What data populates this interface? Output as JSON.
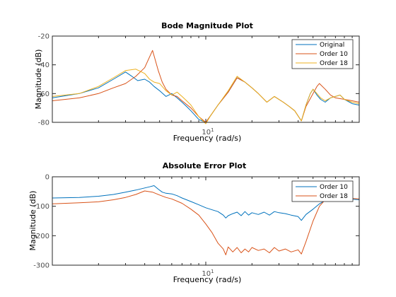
{
  "colors": {
    "blue": "#0072bd",
    "red": "#d95319",
    "yellow": "#edb120",
    "axis": "#262626"
  },
  "chart_data": [
    {
      "type": "line",
      "title": "Bode Magnitude Plot",
      "xlabel": "Frequency  (rad/s)",
      "ylabel": "Magnitude (dB)",
      "xscale": "log",
      "xlim": [
        1.0,
        100.0
      ],
      "ylim": [
        -80,
        -20
      ],
      "yticks": [
        -80,
        -60,
        -40,
        -20
      ],
      "xticks": [
        {
          "value": 10,
          "base": "10",
          "exp": "1"
        }
      ],
      "legend_position": "top-right",
      "series": [
        {
          "name": "Original",
          "color": "#0072bd",
          "x": [
            1.0,
            1.5,
            2.0,
            2.5,
            3.0,
            3.3,
            3.6,
            4.0,
            4.3,
            4.6,
            5.0,
            5.5,
            6.0,
            6.5,
            7.0,
            7.5,
            8.0,
            9.0,
            10.0,
            10.8,
            12.0,
            14.0,
            16.0,
            18.0,
            20.0,
            22.0,
            25.0,
            28.0,
            32.0,
            35.0,
            38.0,
            42.0,
            45.0,
            48.0,
            50.0,
            53.0,
            56.0,
            60.0,
            65.0,
            70.0,
            75.0,
            80.0,
            90.0,
            100.0
          ],
          "y": [
            -63,
            -60,
            -56,
            -50,
            -45,
            -48,
            -51,
            -50,
            -52,
            -55,
            -58,
            -62,
            -60,
            -63,
            -66,
            -69,
            -72,
            -78,
            -80,
            -75,
            -68,
            -59,
            -49,
            -52,
            -56,
            -60,
            -66,
            -62,
            -66,
            -69,
            -72,
            -79,
            -68,
            -60,
            -57,
            -61,
            -64,
            -66,
            -63,
            -62,
            -61,
            -64,
            -67,
            -68
          ]
        },
        {
          "name": "Order 10",
          "color": "#d95319",
          "x": [
            1.0,
            1.5,
            2.0,
            2.5,
            3.0,
            3.5,
            4.0,
            4.5,
            4.9,
            5.2,
            5.5,
            6.0,
            6.5,
            7.0,
            8.0,
            9.0,
            10.0,
            10.8,
            12.0,
            14.0,
            16.0,
            18.0,
            20.0,
            22.0,
            25.0,
            28.0,
            32.0,
            35.0,
            38.0,
            42.0,
            45.0,
            50.0,
            53.0,
            55.0,
            60.0,
            65.0,
            70.0,
            80.0,
            90.0,
            100.0
          ],
          "y": [
            -65,
            -63,
            -60,
            -56,
            -53,
            -48,
            -42,
            -30,
            -44,
            -52,
            -57,
            -61,
            -62,
            -65,
            -70,
            -76,
            -80,
            -75,
            -68,
            -59,
            -49,
            -52,
            -56,
            -60,
            -66,
            -62,
            -66,
            -69,
            -72,
            -79,
            -69,
            -60,
            -55,
            -53,
            -57,
            -61,
            -63,
            -64,
            -65,
            -66
          ]
        },
        {
          "name": "Order 18",
          "color": "#edb120",
          "x": [
            1.0,
            1.5,
            2.0,
            2.5,
            3.0,
            3.5,
            4.0,
            4.3,
            4.6,
            5.0,
            5.5,
            6.0,
            6.5,
            7.0,
            7.5,
            8.0,
            9.0,
            10.0,
            10.8,
            12.0,
            14.0,
            16.0,
            18.0,
            20.0,
            22.0,
            25.0,
            28.0,
            32.0,
            35.0,
            38.0,
            42.0,
            45.0,
            48.0,
            50.0,
            53.0,
            56.0,
            60.0,
            65.0,
            70.0,
            75.0,
            80.0,
            90.0,
            100.0
          ],
          "y": [
            -62,
            -60,
            -55,
            -49,
            -44,
            -43,
            -46,
            -50,
            -52,
            -53,
            -58,
            -61,
            -59,
            -62,
            -65,
            -68,
            -76,
            -81,
            -75,
            -68,
            -58,
            -48,
            -52,
            -56,
            -60,
            -66,
            -62,
            -66,
            -69,
            -72,
            -79,
            -68,
            -60,
            -57,
            -60,
            -63,
            -65,
            -63,
            -62,
            -61,
            -64,
            -66,
            -67
          ]
        }
      ]
    },
    {
      "type": "line",
      "title": "Absolute Error Plot",
      "xlabel": "Frequency  (rad/s)",
      "ylabel": "Magnitude (dB)",
      "xscale": "log",
      "xlim": [
        1.0,
        100.0
      ],
      "ylim": [
        -300,
        0
      ],
      "yticks": [
        -300,
        -200,
        -100,
        0
      ],
      "xticks": [
        {
          "value": 10,
          "base": "10",
          "exp": "1"
        }
      ],
      "legend_position": "top-right",
      "series": [
        {
          "name": "Order 10",
          "color": "#0072bd",
          "x": [
            1.0,
            1.5,
            2.0,
            2.5,
            3.0,
            3.5,
            4.0,
            4.3,
            4.6,
            4.9,
            5.2,
            5.5,
            6.0,
            6.5,
            7.0,
            8.0,
            9.0,
            10.0,
            11.0,
            12.0,
            13.0,
            13.5,
            14.0,
            15.0,
            16.0,
            17.0,
            18.0,
            19.0,
            20.0,
            22.0,
            24.0,
            26.0,
            28.0,
            30.0,
            33.0,
            36.0,
            40.0,
            42.0,
            45.0,
            50.0,
            55.0,
            60.0,
            70.0,
            80.0,
            100.0
          ],
          "y": [
            -72,
            -70,
            -66,
            -60,
            -52,
            -45,
            -38,
            -34,
            -30,
            -42,
            -52,
            -56,
            -58,
            -64,
            -72,
            -84,
            -95,
            -105,
            -112,
            -118,
            -130,
            -140,
            -132,
            -125,
            -120,
            -132,
            -118,
            -130,
            -122,
            -128,
            -120,
            -130,
            -118,
            -122,
            -125,
            -130,
            -135,
            -148,
            -128,
            -110,
            -92,
            -80,
            -72,
            -74,
            -78
          ]
        },
        {
          "name": "Order 18",
          "color": "#d95319",
          "x": [
            1.0,
            1.5,
            2.0,
            2.5,
            3.0,
            3.5,
            4.0,
            4.5,
            5.0,
            5.5,
            6.0,
            7.0,
            8.0,
            9.0,
            10.0,
            11.0,
            12.0,
            13.0,
            13.5,
            14.0,
            15.0,
            16.0,
            17.0,
            18.0,
            19.0,
            20.0,
            22.0,
            24.0,
            26.0,
            28.0,
            30.0,
            33.0,
            36.0,
            40.0,
            42.0,
            45.0,
            50.0,
            55.0,
            60.0,
            70.0,
            80.0,
            100.0
          ],
          "y": [
            -92,
            -88,
            -85,
            -78,
            -70,
            -60,
            -48,
            -52,
            -62,
            -70,
            -75,
            -90,
            -110,
            -130,
            -160,
            -190,
            -225,
            -245,
            -265,
            -238,
            -255,
            -240,
            -258,
            -245,
            -255,
            -240,
            -250,
            -245,
            -258,
            -240,
            -252,
            -245,
            -255,
            -248,
            -262,
            -220,
            -150,
            -100,
            -78,
            -70,
            -72,
            -75
          ]
        }
      ]
    }
  ]
}
